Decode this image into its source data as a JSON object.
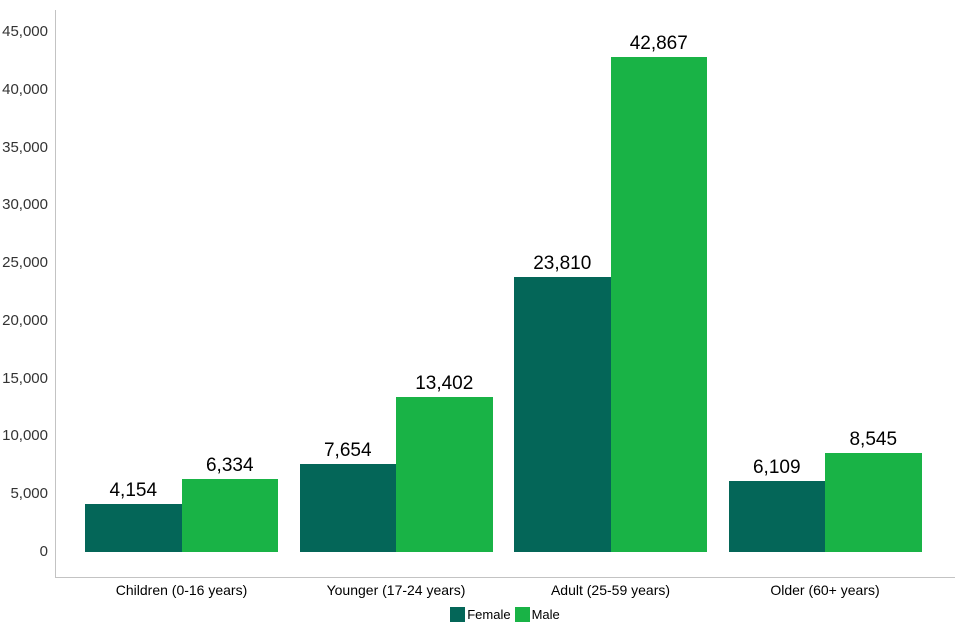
{
  "chart_data": {
    "type": "bar",
    "title": "",
    "xlabel": "",
    "ylabel": "",
    "categories": [
      "Children (0-16 years)",
      "Younger (17-24 years)",
      "Adult (25-59 years)",
      "Older (60+ years)"
    ],
    "series": [
      {
        "name": "Female",
        "color": "#046658",
        "values": [
          4154,
          7654,
          23810,
          6109
        ],
        "labels": [
          "4,154",
          "7,654",
          "23,810",
          "6,109"
        ]
      },
      {
        "name": "Male",
        "color": "#19B346",
        "values": [
          6334,
          13402,
          42867,
          8545
        ],
        "labels": [
          "6,334",
          "13,402",
          "42,867",
          "8,545"
        ]
      }
    ],
    "ylim": [
      0,
      45000
    ],
    "yticks": [
      {
        "value": 0,
        "label": "0"
      },
      {
        "value": 5000,
        "label": "5,000"
      },
      {
        "value": 10000,
        "label": "10,000"
      },
      {
        "value": 15000,
        "label": "15,000"
      },
      {
        "value": 20000,
        "label": "20,000"
      },
      {
        "value": 25000,
        "label": "25,000"
      },
      {
        "value": 30000,
        "label": "30,000"
      },
      {
        "value": 35000,
        "label": "35,000"
      },
      {
        "value": 40000,
        "label": "40,000"
      },
      {
        "value": 45000,
        "label": "45,000"
      }
    ],
    "grid": false,
    "legend_position": "bottom",
    "data_labels": true,
    "colors": {
      "axis_line": "#c3c3c3",
      "tick_text": "#333333",
      "label_text": "#000000",
      "background": "#ffffff"
    }
  }
}
